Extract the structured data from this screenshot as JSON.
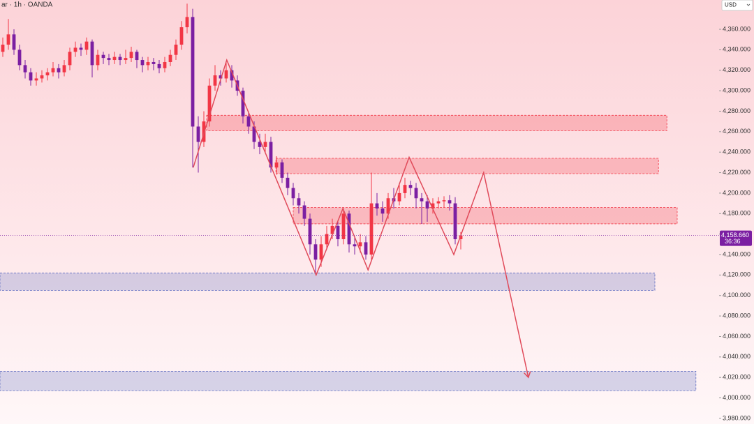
{
  "chart_data": {
    "type": "candlestick",
    "title": "ar · 1h · OANDA",
    "currency": "USD",
    "up_color": "#f23645",
    "down_color": "#7b1fa2",
    "ylim": [
      3974.5,
      4388.6
    ],
    "xlim": [
      -0.5,
      128.25
    ],
    "yticks": [
      {
        "value": 4360,
        "label": "4,360.000"
      },
      {
        "value": 4340,
        "label": "4,340.000"
      },
      {
        "value": 4320,
        "label": "4,320.000"
      },
      {
        "value": 4300,
        "label": "4,300.000"
      },
      {
        "value": 4280,
        "label": "4,280.000"
      },
      {
        "value": 4260,
        "label": "4,260.000"
      },
      {
        "value": 4240,
        "label": "4,240.000"
      },
      {
        "value": 4220,
        "label": "4,220.000"
      },
      {
        "value": 4200,
        "label": "4,200.000"
      },
      {
        "value": 4180,
        "label": "4,180.000"
      },
      {
        "value": 4160,
        "label": "4,160.000"
      },
      {
        "value": 4140,
        "label": "4,140.000"
      },
      {
        "value": 4120,
        "label": "4,120.000"
      },
      {
        "value": 4100,
        "label": "4,100.000"
      },
      {
        "value": 4080,
        "label": "4,080.000"
      },
      {
        "value": 4060,
        "label": "4,060.000"
      },
      {
        "value": 4040,
        "label": "4,040.000"
      },
      {
        "value": 4020,
        "label": "4,020.000"
      },
      {
        "value": 4000,
        "label": "4,000.000"
      },
      {
        "value": 3980,
        "label": "3,980.000"
      }
    ],
    "candles": {
      "open": [
        4338,
        4345,
        4355,
        4340,
        4325,
        4318,
        4310,
        4312,
        4315,
        4318,
        4322,
        4318,
        4325,
        4338,
        4342,
        4340,
        4348,
        4325,
        4335,
        4332,
        4330,
        4333,
        4330,
        4332,
        4338,
        4330,
        4325,
        4328,
        4326,
        4322,
        4328,
        4335,
        4345,
        4362,
        4372,
        4265,
        4250,
        4270,
        4305,
        4315,
        4312,
        4320,
        4310,
        4300,
        4275,
        4265,
        4250,
        4245,
        4250,
        4225,
        4230,
        4215,
        4205,
        4195,
        4188,
        4175,
        4150,
        4135,
        4150,
        4160,
        4168,
        4155,
        4180,
        4150,
        4148,
        4152,
        4140,
        4190,
        4185,
        4180,
        4195,
        4192,
        4200,
        4208,
        4205,
        4195,
        4192,
        4185,
        4190,
        4192,
        4193,
        4190,
        4155
      ],
      "high": [
        4352,
        4370,
        4360,
        4345,
        4330,
        4322,
        4318,
        4320,
        4322,
        4328,
        4326,
        4330,
        4342,
        4348,
        4346,
        4352,
        4350,
        4340,
        4338,
        4336,
        4338,
        4336,
        4340,
        4343,
        4340,
        4333,
        4333,
        4332,
        4330,
        4333,
        4340,
        4350,
        4368,
        4385,
        4380,
        4275,
        4280,
        4312,
        4325,
        4320,
        4328,
        4325,
        4315,
        4303,
        4280,
        4270,
        4258,
        4258,
        4255,
        4236,
        4233,
        4220,
        4210,
        4200,
        4192,
        4180,
        4155,
        4158,
        4168,
        4175,
        4172,
        4185,
        4183,
        4158,
        4160,
        4158,
        4220,
        4200,
        4192,
        4200,
        4205,
        4210,
        4215,
        4212,
        4210,
        4200,
        4198,
        4195,
        4196,
        4197,
        4198,
        4196,
        4162
      ],
      "low": [
        4333,
        4340,
        4335,
        4320,
        4312,
        4305,
        4305,
        4308,
        4310,
        4314,
        4312,
        4314,
        4320,
        4333,
        4334,
        4335,
        4313,
        4320,
        4326,
        4325,
        4326,
        4325,
        4326,
        4328,
        4322,
        4318,
        4320,
        4320,
        4317,
        4318,
        4324,
        4330,
        4340,
        4356,
        4225,
        4220,
        4245,
        4265,
        4300,
        4305,
        4308,
        4303,
        4295,
        4268,
        4258,
        4243,
        4238,
        4240,
        4220,
        4218,
        4210,
        4198,
        4188,
        4180,
        4168,
        4140,
        4122,
        4128,
        4145,
        4155,
        4148,
        4150,
        4142,
        4140,
        4142,
        4135,
        4135,
        4178,
        4172,
        4175,
        4185,
        4188,
        4195,
        4198,
        4185,
        4170,
        4172,
        4180,
        4185,
        4186,
        4183,
        4150,
        4145
      ],
      "close": [
        4345,
        4355,
        4340,
        4325,
        4318,
        4310,
        4312,
        4315,
        4318,
        4322,
        4318,
        4325,
        4338,
        4342,
        4340,
        4348,
        4325,
        4335,
        4332,
        4330,
        4333,
        4330,
        4332,
        4338,
        4330,
        4325,
        4328,
        4326,
        4322,
        4328,
        4335,
        4345,
        4362,
        4372,
        4265,
        4250,
        4270,
        4305,
        4315,
        4312,
        4320,
        4310,
        4300,
        4275,
        4265,
        4250,
        4245,
        4250,
        4225,
        4230,
        4215,
        4205,
        4195,
        4188,
        4175,
        4150,
        4135,
        4150,
        4160,
        4168,
        4155,
        4180,
        4150,
        4148,
        4152,
        4140,
        4190,
        4185,
        4180,
        4195,
        4192,
        4200,
        4208,
        4205,
        4195,
        4192,
        4185,
        4190,
        4192,
        4193,
        4190,
        4155,
        4158.66
      ]
    },
    "last_price": {
      "value": 4158.66,
      "label": "4,158.660",
      "countdown": "36:36",
      "color": "#7b1fa2"
    },
    "zones": [
      {
        "top": 4276,
        "bottom": 4261,
        "x": [
          36.5,
          118.9
        ],
        "color": "#f23645"
      },
      {
        "top": 4234,
        "bottom": 4219,
        "x": [
          48.9,
          117.4
        ],
        "color": "#f23645"
      },
      {
        "top": 4186,
        "bottom": 4170,
        "x": [
          52,
          120.75
        ],
        "color": "#f23645"
      },
      {
        "top": 4122,
        "bottom": 4105,
        "x": [
          -0.5,
          116.75
        ],
        "color": "#5c6bc0"
      },
      {
        "top": 4026,
        "bottom": 4007,
        "x": [
          -0.5,
          124.1
        ],
        "color": "#5c6bc0"
      }
    ],
    "projection": {
      "color": "#e04a5a",
      "x": [
        34.1,
        40.1,
        56.1,
        60.9,
        65.4,
        72.75,
        80.75,
        86.1,
        94.1
      ],
      "values": [
        4225,
        4330,
        4120,
        4185,
        4125,
        4235,
        4140,
        4220,
        4020
      ]
    }
  }
}
